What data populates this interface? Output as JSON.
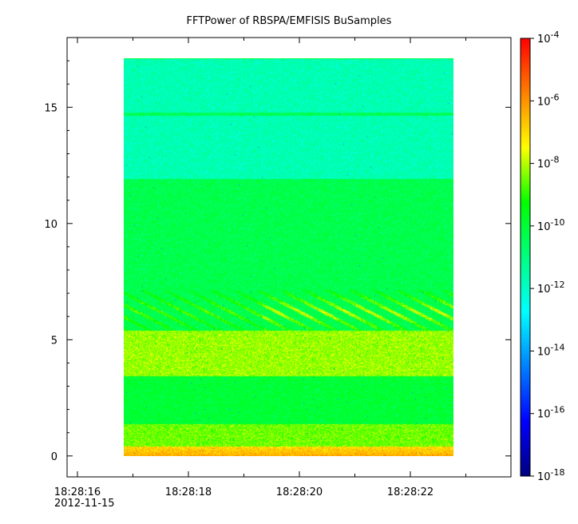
{
  "chart_data": {
    "type": "heatmap",
    "title": "FFTPower of RBSPA/EMFISIS  BuSamples",
    "xlabel": "",
    "ylabel": "",
    "x_ticks": [
      "18:28:16",
      "18:28:18",
      "18:28:20",
      "18:28:22"
    ],
    "x_date_label": "2012-11-15",
    "y_ticks": [
      0,
      5,
      10,
      15
    ],
    "ylim": [
      -0.9,
      18.0
    ],
    "data_time_range": [
      "18:28:16.8",
      "18:28:22.8"
    ],
    "data_freq_range": [
      0,
      17.5
    ],
    "colorbar": {
      "scale": "log",
      "range": [
        1e-18,
        0.0001
      ],
      "tick_exponents": [
        -4,
        -6,
        -8,
        -10,
        -12,
        -14,
        -16,
        -18
      ],
      "colors": [
        "#00007f",
        "#0000ff",
        "#0080ff",
        "#00ffff",
        "#00ff80",
        "#00ff00",
        "#ffff00",
        "#ff8000",
        "#ff0000"
      ]
    },
    "bands": [
      {
        "freq": [
          0,
          0.4
        ],
        "level_exp": -7.0,
        "desc": "red/orange base"
      },
      {
        "freq": [
          0.4,
          1.4
        ],
        "level_exp": -8.5
      },
      {
        "freq": [
          1.4,
          3.5
        ],
        "level_exp": -10.0
      },
      {
        "freq": [
          3.5,
          5.5
        ],
        "level_exp": -8.2
      },
      {
        "freq": [
          5.5,
          12.2
        ],
        "level_exp": -10.3
      },
      {
        "freq": [
          12.2,
          17.5
        ],
        "level_exp": -11.7
      },
      {
        "freq": [
          15.0,
          15.1
        ],
        "level_exp": -10.5,
        "desc": "narrow line"
      }
    ]
  }
}
